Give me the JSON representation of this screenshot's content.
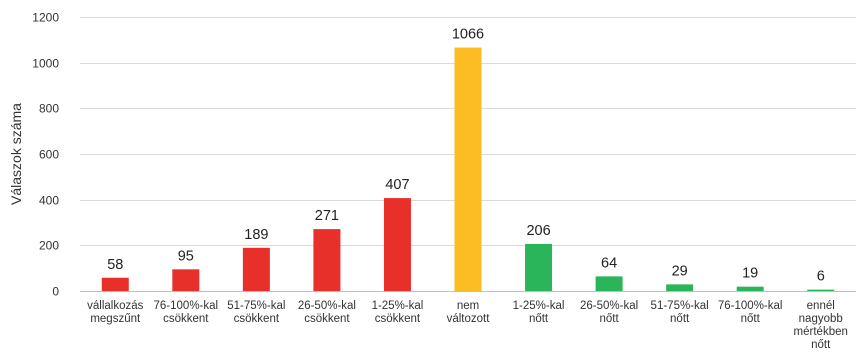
{
  "chart_data": {
    "type": "bar",
    "ylabel": "Válaszok száma",
    "xlabel": "",
    "ylim": [
      0,
      1200
    ],
    "yticks": [
      0,
      200,
      400,
      600,
      800,
      1000,
      1200
    ],
    "grid": true,
    "categories": [
      [
        "vállalkozás",
        "megszűnt"
      ],
      [
        "76-100%-kal",
        "csökkent"
      ],
      [
        "51-75%-kal",
        "csökkent"
      ],
      [
        "26-50%-kal",
        "csökkent"
      ],
      [
        "1-25%-kal",
        "csökkent"
      ],
      [
        "nem",
        "változott"
      ],
      [
        "1-25%-kal",
        "nőtt"
      ],
      [
        "26-50%-kal",
        "nőtt"
      ],
      [
        "51-75%-kal",
        "nőtt"
      ],
      [
        "76-100%-kal",
        "nőtt"
      ],
      [
        "ennél",
        "nagyobb",
        "mértékben",
        "nőtt"
      ]
    ],
    "values": [
      58,
      95,
      189,
      271,
      407,
      1066,
      206,
      64,
      29,
      19,
      6
    ],
    "colors": [
      "#e8302a",
      "#e8302a",
      "#e8302a",
      "#e8302a",
      "#e8302a",
      "#fbbc24",
      "#2bb55a",
      "#2bb55a",
      "#2bb55a",
      "#2bb55a",
      "#2bb55a"
    ],
    "gridline_color": "#d9d9d9",
    "axis_color": "#bfbfbf"
  }
}
